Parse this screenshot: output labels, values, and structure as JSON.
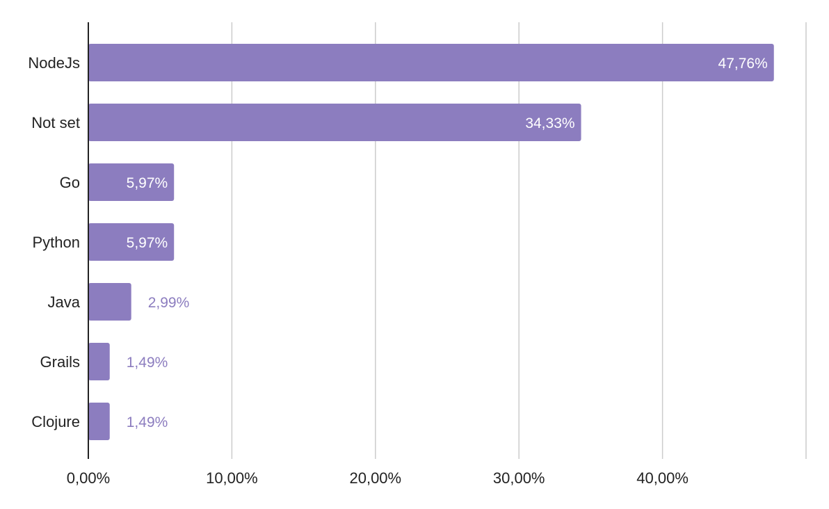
{
  "chart_data": {
    "type": "bar",
    "orientation": "horizontal",
    "categories": [
      "NodeJs",
      "Not set",
      "Go",
      "Python",
      "Java",
      "Grails",
      "Clojure"
    ],
    "values": [
      47.76,
      34.33,
      5.97,
      5.97,
      2.99,
      1.49,
      1.49
    ],
    "value_labels": [
      "47,76%",
      "34,33%",
      "5,97%",
      "5,97%",
      "2,99%",
      "1,49%",
      "1,49%"
    ],
    "xlim": [
      0,
      50
    ],
    "xticks": [
      0,
      10,
      20,
      30,
      40
    ],
    "xtick_labels": [
      "0,00%",
      "10,00%",
      "20,00%",
      "30,00%",
      "40,00%"
    ],
    "grid": true,
    "legend": "none",
    "colors": {
      "bar": "#8c7dbf",
      "label_inside": "#ffffff",
      "label_outside": "#8c7dbf",
      "grid": "#cccccc",
      "axis": "#222222"
    }
  }
}
